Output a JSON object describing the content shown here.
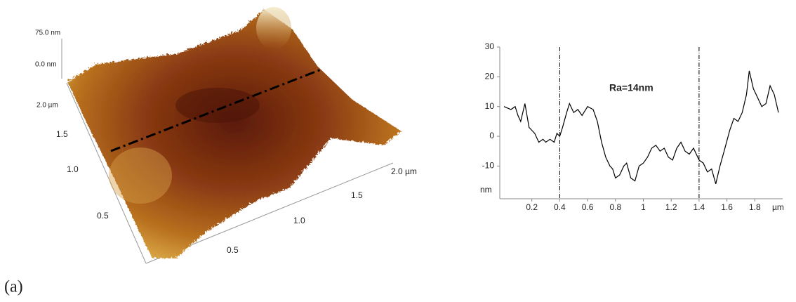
{
  "panel_label": "(a)",
  "surface_3d": {
    "z_labels": [
      "75.0 nm",
      "0.0 nm"
    ],
    "y_labels": [
      "2.0 µm",
      "1.5",
      "1.0",
      "0.5"
    ],
    "x_labels": [
      "0.5",
      "1.0",
      "1.5",
      "2.0 µm"
    ]
  },
  "chart_data": {
    "type": "line",
    "annotation": "Ra=14nm",
    "x_unit": "µm",
    "y_unit": "nm",
    "color": "#000000",
    "x": [
      0,
      0.05,
      0.08,
      0.1,
      0.12,
      0.15,
      0.18,
      0.22,
      0.25,
      0.28,
      0.3,
      0.33,
      0.36,
      0.38,
      0.4,
      0.42,
      0.45,
      0.47,
      0.5,
      0.53,
      0.56,
      0.6,
      0.64,
      0.67,
      0.7,
      0.73,
      0.76,
      0.78,
      0.8,
      0.83,
      0.86,
      0.88,
      0.91,
      0.94,
      0.97,
      1.0,
      1.03,
      1.06,
      1.09,
      1.12,
      1.15,
      1.18,
      1.21,
      1.24,
      1.27,
      1.3,
      1.33,
      1.36,
      1.4,
      1.43,
      1.46,
      1.49,
      1.52,
      1.55,
      1.58,
      1.62,
      1.65,
      1.68,
      1.71,
      1.74,
      1.76,
      1.79,
      1.82,
      1.85,
      1.88,
      1.91,
      1.94,
      1.97
    ],
    "values": [
      10,
      9,
      10,
      7,
      5,
      11,
      3,
      1,
      -2,
      -1,
      -2,
      -1,
      -2,
      1,
      0,
      3,
      8,
      11,
      8,
      9,
      7,
      10,
      9,
      5,
      -2,
      -7,
      -10,
      -11,
      -14,
      -13,
      -10,
      -9,
      -14,
      -15,
      -10,
      -9,
      -7,
      -4,
      -3,
      -5,
      -4,
      -7,
      -8,
      -4,
      -2,
      -5,
      -6,
      -4,
      -8,
      -9,
      -12,
      -11,
      -16,
      -10,
      -5,
      2,
      6,
      5,
      8,
      14,
      22,
      16,
      13,
      10,
      11,
      17,
      14,
      8
    ],
    "vlines": [
      0.4,
      1.4
    ],
    "xlim": [
      0,
      2.0
    ],
    "ylim": [
      -21,
      30
    ],
    "xticks": [
      0.2,
      0.4,
      0.6,
      0.8,
      1,
      1.2,
      1.4,
      1.6,
      1.8
    ],
    "yticks": [
      30,
      20,
      10,
      0,
      -10
    ]
  }
}
